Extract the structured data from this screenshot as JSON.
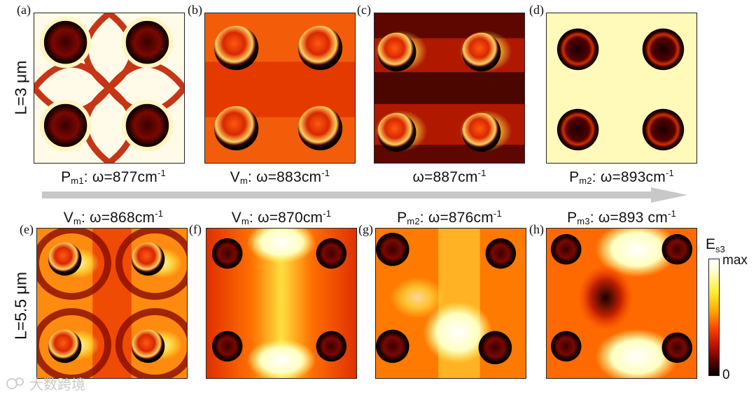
{
  "row_labels": {
    "top": "L=3 μm",
    "bottom": "L=5.5 μm"
  },
  "panels": [
    {
      "label": "(a)",
      "cap_pre": "P",
      "cap_sub": "m1",
      "cap_mid": ": ω=877cm",
      "cap_sup": "-1"
    },
    {
      "label": "(b)",
      "cap_pre": "V",
      "cap_sub": "m",
      "cap_mid": ": ω=883cm",
      "cap_sup": "-1"
    },
    {
      "label": "(c)",
      "cap_pre": "",
      "cap_sub": "",
      "cap_mid": "ω=887cm",
      "cap_sup": "-1"
    },
    {
      "label": "(d)",
      "cap_pre": "P",
      "cap_sub": "m2",
      "cap_mid": ": ω=893cm",
      "cap_sup": "-1"
    },
    {
      "label": "(e)",
      "cap_pre": "V",
      "cap_sub": "m",
      "cap_mid": ": ω=868cm",
      "cap_sup": "-1"
    },
    {
      "label": "(f)",
      "cap_pre": "V",
      "cap_sub": "m",
      "cap_mid": ": ω=870cm",
      "cap_sup": "-1"
    },
    {
      "label": "(g)",
      "cap_pre": "P",
      "cap_sub": "m2",
      "cap_mid": ": ω=876cm",
      "cap_sup": "-1"
    },
    {
      "label": "(h)",
      "cap_pre": "P",
      "cap_sub": "m3",
      "cap_mid": ": ω=893 cm",
      "cap_sup": "-1"
    }
  ],
  "colorbar": {
    "title_main": "E",
    "title_sub": "s3",
    "max_label": "max",
    "min_label": "0"
  },
  "watermark": {
    "text": "大数跨境"
  },
  "colors": {
    "arrow": "#c8c8c8",
    "colormap": [
      "#000000",
      "#5a0000",
      "#b81000",
      "#ff4000",
      "#ffa500",
      "#ffee33",
      "#ffffd0",
      "#ffffff"
    ]
  }
}
